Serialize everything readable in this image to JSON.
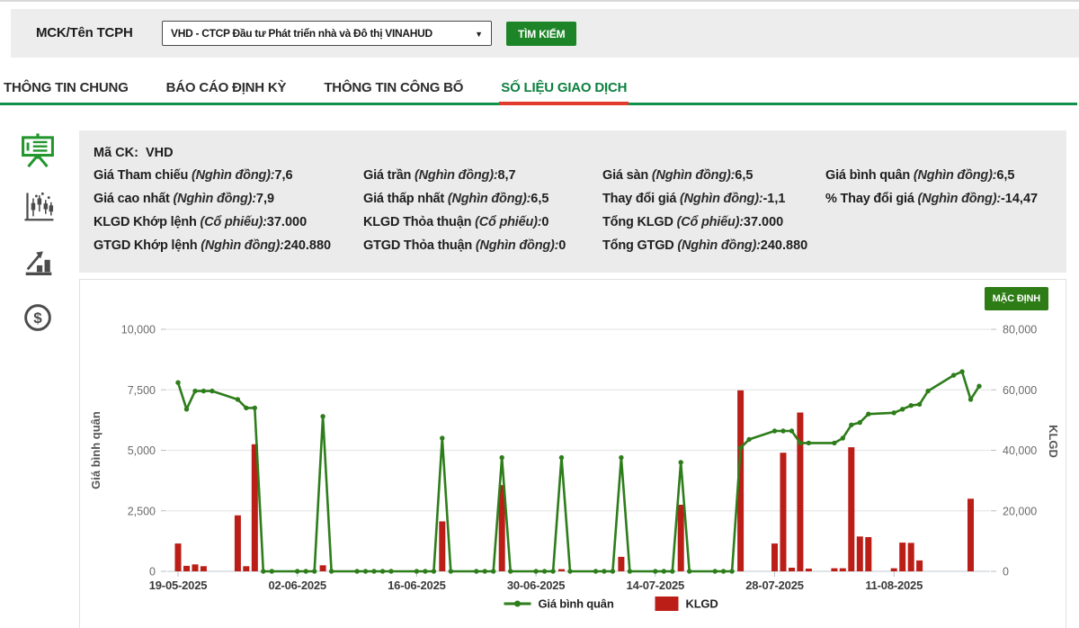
{
  "topbar": {
    "label": "MCK/Tên TCPH",
    "select_value": "VHD - CTCP Đầu tư Phát triển nhà và Đô thị VINAHUD",
    "search_button": "TÌM KIẾM"
  },
  "tabs": [
    {
      "label": "THÔNG TIN CHUNG",
      "active": false
    },
    {
      "label": "BÁO CÁO ĐỊNH KỲ",
      "active": false
    },
    {
      "label": "THÔNG TIN CÔNG BỐ",
      "active": false
    },
    {
      "label": "SỐ LIỆU GIAO DỊCH",
      "active": true
    }
  ],
  "sidebar": {
    "items": [
      {
        "icon": "presentation-chart-icon",
        "active": true
      },
      {
        "icon": "candlestick-chart-icon",
        "active": false
      },
      {
        "icon": "bar-chart-growth-icon",
        "active": false
      },
      {
        "icon": "dollar-coin-icon",
        "active": false
      }
    ]
  },
  "summary": {
    "code_label": "Mã CK:",
    "code_value": "VHD",
    "items": [
      {
        "label": "Giá Tham chiếu",
        "unit": "(Nghìn đồng):",
        "value": "7,6"
      },
      {
        "label": "Giá trần",
        "unit": "(Nghìn đồng):",
        "value": "8,7"
      },
      {
        "label": "Giá sàn",
        "unit": "(Nghìn đồng):",
        "value": "6,5"
      },
      {
        "label": "Giá bình quân",
        "unit": "(Nghìn đồng):",
        "value": "6,5"
      },
      {
        "label": "Giá cao nhất",
        "unit": "(Nghìn đồng):",
        "value": "7,9"
      },
      {
        "label": "Giá thấp nhất",
        "unit": "(Nghìn đồng):",
        "value": "6,5"
      },
      {
        "label": "Thay đổi giá",
        "unit": "(Nghìn đồng):",
        "value": "-1,1"
      },
      {
        "label": "% Thay đổi giá",
        "unit": "(Nghìn đồng):",
        "value": "-14,47"
      },
      {
        "label": "KLGD Khớp lệnh",
        "unit": "(Cổ phiếu):",
        "value": "37.000"
      },
      {
        "label": "KLGD Thỏa thuận",
        "unit": "(Cổ phiếu):",
        "value": "0"
      },
      {
        "label": "Tổng KLGD",
        "unit": "(Cổ phiếu):",
        "value": "37.000"
      },
      null,
      {
        "label": "GTGD Khớp lệnh",
        "unit": "(Nghìn đồng):",
        "value": "240.880"
      },
      {
        "label": "GTGD Thỏa thuận",
        "unit": "(Nghìn đồng):",
        "value": "0"
      },
      {
        "label": "Tổng GTGD",
        "unit": "(Nghìn đồng):",
        "value": "240.880"
      },
      null
    ]
  },
  "chart": {
    "button": "MẶC ĐỊNH",
    "colors": {
      "line": "#2e7d1b",
      "bar": "#bb1d17",
      "grid": "#e7e7e7",
      "baseline": "#ccd2d8",
      "tick": "#b8bfc6",
      "brand_green": "#0e9148",
      "active_red": "#e23b2e"
    }
  },
  "chart_data": {
    "type": "line+bar",
    "title": "",
    "x": [
      "19-05-2025",
      "20-05-2025",
      "21-05-2025",
      "22-05-2025",
      "23-05-2025",
      "26-05-2025",
      "27-05-2025",
      "28-05-2025",
      "29-05-2025",
      "30-05-2025",
      "02-06-2025",
      "03-06-2025",
      "04-06-2025",
      "05-06-2025",
      "06-06-2025",
      "09-06-2025",
      "10-06-2025",
      "11-06-2025",
      "12-06-2025",
      "13-06-2025",
      "16-06-2025",
      "17-06-2025",
      "18-06-2025",
      "19-06-2025",
      "20-06-2025",
      "23-06-2025",
      "24-06-2025",
      "25-06-2025",
      "26-06-2025",
      "27-06-2025",
      "30-06-2025",
      "01-07-2025",
      "02-07-2025",
      "03-07-2025",
      "04-07-2025",
      "07-07-2025",
      "08-07-2025",
      "09-07-2025",
      "10-07-2025",
      "11-07-2025",
      "14-07-2025",
      "15-07-2025",
      "16-07-2025",
      "17-07-2025",
      "18-07-2025",
      "21-07-2025",
      "22-07-2025",
      "23-07-2025",
      "24-07-2025",
      "25-07-2025",
      "28-07-2025",
      "29-07-2025",
      "30-07-2025",
      "31-07-2025",
      "01-08-2025",
      "04-08-2025",
      "05-08-2025",
      "06-08-2025",
      "07-08-2025",
      "08-08-2025",
      "11-08-2025",
      "12-08-2025",
      "13-08-2025",
      "14-08-2025",
      "15-08-2025",
      "18-08-2025",
      "19-08-2025",
      "20-08-2025",
      "21-08-2025"
    ],
    "x_tick_indices": [
      0,
      10,
      20,
      30,
      40,
      50,
      60
    ],
    "x_tick_labels": [
      "19-05-2025",
      "02-06-2025",
      "16-06-2025",
      "30-06-2025",
      "14-07-2025",
      "28-07-2025",
      "11-08-2025"
    ],
    "left_axis": {
      "title": "Giá bình quân",
      "min": 0,
      "max": 10000,
      "ticks": [
        "0",
        "2,500",
        "5,000",
        "7,500",
        "10,000"
      ]
    },
    "right_axis": {
      "title": "KLGD",
      "min": 0,
      "max": 80000,
      "ticks": [
        "0",
        "20,000",
        "40,000",
        "60,000",
        "80,000"
      ]
    },
    "grid": true,
    "legend_position": "bottom",
    "series": [
      {
        "name": "Giá bình quân",
        "type": "line",
        "axis": "left",
        "color": "#2e7d1b",
        "values": [
          7800,
          6700,
          7450,
          7450,
          7450,
          7100,
          6750,
          6750,
          0,
          0,
          0,
          0,
          0,
          6400,
          0,
          0,
          0,
          0,
          0,
          0,
          0,
          0,
          0,
          5500,
          0,
          0,
          0,
          0,
          4700,
          0,
          0,
          0,
          0,
          4700,
          0,
          0,
          0,
          0,
          4700,
          0,
          0,
          0,
          0,
          4500,
          0,
          0,
          0,
          0,
          5100,
          5450,
          5800,
          5800,
          5800,
          5300,
          5300,
          5300,
          5500,
          6050,
          6150,
          6500,
          6550,
          6700,
          6850,
          6900,
          7450,
          8100,
          8250,
          7100,
          7650
        ]
      },
      {
        "name": "KLGD",
        "type": "bar",
        "axis": "right",
        "color": "#bb1d17",
        "values": [
          9200,
          1800,
          2300,
          1700,
          0,
          18500,
          1700,
          42000,
          0,
          0,
          0,
          0,
          0,
          2000,
          0,
          0,
          0,
          0,
          0,
          0,
          0,
          0,
          0,
          16500,
          0,
          0,
          0,
          0,
          28500,
          0,
          0,
          0,
          0,
          700,
          0,
          0,
          0,
          0,
          4800,
          0,
          0,
          0,
          0,
          22000,
          0,
          0,
          0,
          0,
          59800,
          0,
          9200,
          39200,
          1200,
          52500,
          900,
          1000,
          1000,
          41000,
          11500,
          11300,
          1000,
          9500,
          9400,
          3600,
          0,
          0,
          0,
          24000,
          0
        ]
      }
    ],
    "legend": [
      "Giá bình quân",
      "KLGD"
    ]
  }
}
